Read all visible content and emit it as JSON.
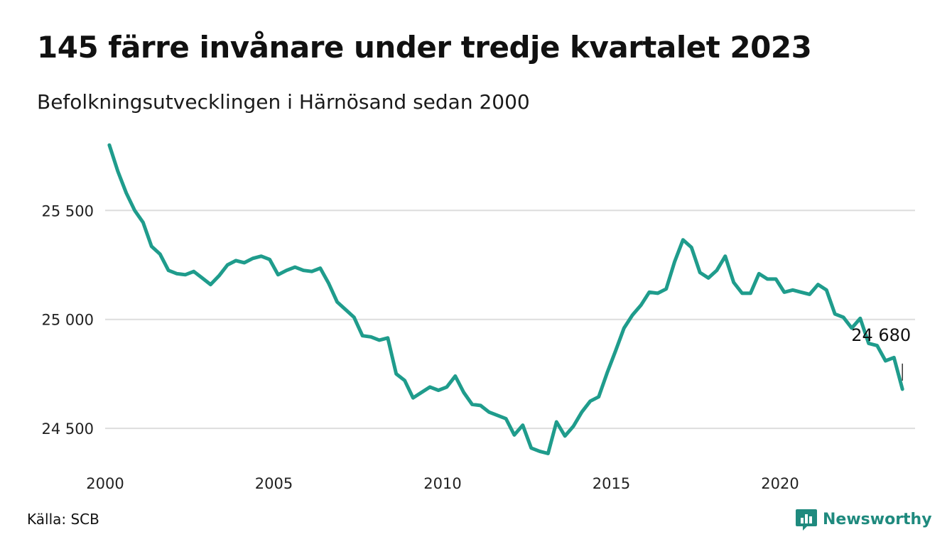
{
  "header": {
    "title": "145 färre invånare under tredje kvartalet 2023",
    "subtitle": "Befolkningsutvecklingen i Härnösand sedan 2000"
  },
  "footer": {
    "source": "Källa: SCB",
    "brand": "Newsworthy"
  },
  "colors": {
    "line": "#1f9c8c",
    "grid": "#dddddd",
    "brand": "#1f8a7e"
  },
  "icons": {
    "brand_logo": "bar-chart-speech-bubble-icon"
  },
  "chart_data": {
    "type": "line",
    "title": "145 färre invånare under tredje kvartalet 2023",
    "subtitle": "Befolkningsutvecklingen i Härnösand sedan 2000",
    "xlabel": "",
    "ylabel": "",
    "xlim": [
      2000,
      2024
    ],
    "ylim": [
      24380,
      25830
    ],
    "x_ticks": [
      2000,
      2005,
      2010,
      2015,
      2020
    ],
    "x_tick_labels": [
      "2000",
      "2005",
      "2010",
      "2015",
      "2020"
    ],
    "y_ticks": [
      24500,
      25000,
      25500
    ],
    "y_tick_labels": [
      "24 500",
      "25 000",
      "25 500"
    ],
    "grid": "horizontal",
    "legend": "none",
    "end_label": "24 680",
    "series": [
      {
        "x": [
          2000.125,
          2000.375,
          2000.625,
          2000.875,
          2001.125,
          2001.375,
          2001.625,
          2001.875,
          2002.125,
          2002.375,
          2002.625,
          2002.875,
          2003.125,
          2003.375,
          2003.625,
          2003.875,
          2004.125,
          2004.375,
          2004.625,
          2004.875,
          2005.125,
          2005.375,
          2005.625,
          2005.875,
          2006.125,
          2006.375,
          2006.625,
          2006.875,
          2007.125,
          2007.375,
          2007.625,
          2007.875,
          2008.125,
          2008.375,
          2008.625,
          2008.875,
          2009.125,
          2009.375,
          2009.625,
          2009.875,
          2010.125,
          2010.375,
          2010.625,
          2010.875,
          2011.125,
          2011.375,
          2011.625,
          2011.875,
          2012.125,
          2012.375,
          2012.625,
          2012.875,
          2013.125,
          2013.375,
          2013.625,
          2013.875,
          2014.125,
          2014.375,
          2014.625,
          2014.875,
          2015.125,
          2015.375,
          2015.625,
          2015.875,
          2016.125,
          2016.375,
          2016.625,
          2016.875,
          2017.125,
          2017.375,
          2017.625,
          2017.875,
          2018.125,
          2018.375,
          2018.625,
          2018.875,
          2019.125,
          2019.375,
          2019.625,
          2019.875,
          2020.125,
          2020.375,
          2020.625,
          2020.875,
          2021.125,
          2021.375,
          2021.625,
          2021.875,
          2022.125,
          2022.375,
          2022.625,
          2022.875,
          2023.125,
          2023.375,
          2023.625
        ],
        "values": [
          25800,
          25680,
          25580,
          25500,
          25445,
          25335,
          25300,
          25225,
          25210,
          25205,
          25220,
          25190,
          25160,
          25200,
          25250,
          25270,
          25260,
          25280,
          25290,
          25275,
          25205,
          25225,
          25240,
          25225,
          25220,
          25235,
          25165,
          25080,
          25045,
          25010,
          24925,
          24920,
          24905,
          24915,
          24750,
          24720,
          24640,
          24665,
          24690,
          24675,
          24690,
          24740,
          24665,
          24610,
          24605,
          24575,
          24560,
          24545,
          24470,
          24515,
          24410,
          24395,
          24385,
          24530,
          24465,
          24510,
          24575,
          24625,
          24645,
          24755,
          24855,
          24960,
          25020,
          25065,
          25125,
          25120,
          25140,
          25265,
          25365,
          25330,
          25215,
          25190,
          25225,
          25290,
          25170,
          25120,
          25120,
          25210,
          25185,
          25185,
          25125,
          25135,
          25125,
          25115,
          25160,
          25135,
          25025,
          25010,
          24960,
          25005,
          24890,
          24880,
          24810,
          24825,
          24680
        ]
      }
    ]
  }
}
